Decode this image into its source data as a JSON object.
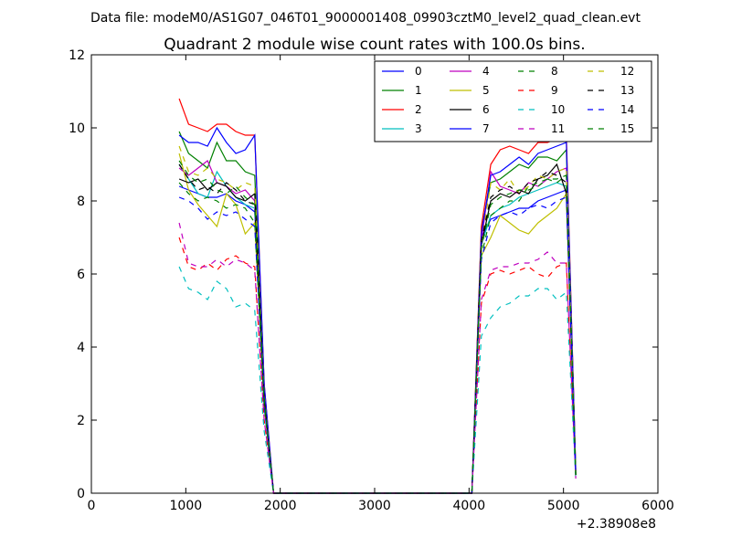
{
  "chart_data": {
    "type": "line",
    "suptitle": "Data file: modeM0/AS1G07_046T01_9000001408_09903cztM0_level2_quad_clean.evt",
    "title": "Quadrant 2 module wise count rates with 100.0s bins.",
    "xlabel": "",
    "ylabel": "",
    "x_offset_label": "+2.38908e8",
    "xlim": [
      0,
      6000
    ],
    "ylim": [
      0,
      12
    ],
    "xticks": [
      "0",
      "1000",
      "2000",
      "3000",
      "4000",
      "5000",
      "6000"
    ],
    "yticks": [
      "0",
      "2",
      "4",
      "6",
      "8",
      "10",
      "12"
    ],
    "grid": false,
    "legend": {
      "position": "top-right",
      "columns": 4
    },
    "x": [
      930,
      1030,
      1130,
      1230,
      1330,
      1430,
      1530,
      1630,
      1730,
      1830,
      1930,
      2030,
      2130,
      2230,
      2330,
      2430,
      2530,
      2630,
      2730,
      2830,
      2930,
      3030,
      3130,
      3230,
      3330,
      3430,
      3530,
      3630,
      3730,
      3830,
      3930,
      4030,
      4130,
      4230,
      4330,
      4430,
      4530,
      4630,
      4730,
      4830,
      4930,
      5030,
      5130
    ],
    "series": [
      {
        "name": "0",
        "color": "#0000ff",
        "dash": "solid",
        "values": [
          8.4,
          8.3,
          8.2,
          8.1,
          8.1,
          8.2,
          8.0,
          7.9,
          7.7,
          2.5,
          0,
          0,
          0,
          0,
          0,
          0,
          0,
          0,
          0,
          0,
          0,
          0,
          0,
          0,
          0,
          0,
          0,
          0,
          0,
          0,
          0,
          0,
          7.0,
          7.5,
          7.6,
          7.7,
          7.8,
          7.8,
          8.0,
          8.1,
          8.2,
          8.3,
          0.5
        ]
      },
      {
        "name": "1",
        "color": "#008000",
        "dash": "solid",
        "values": [
          9.9,
          9.3,
          9.1,
          8.9,
          9.6,
          9.1,
          9.1,
          8.8,
          8.7,
          2.8,
          0,
          0,
          0,
          0,
          0,
          0,
          0,
          0,
          0,
          0,
          0,
          0,
          0,
          0,
          0,
          0,
          0,
          0,
          0,
          0,
          0,
          0,
          7.2,
          8.5,
          8.6,
          8.8,
          9.0,
          8.9,
          9.2,
          9.2,
          9.1,
          9.4,
          0.6
        ]
      },
      {
        "name": "2",
        "color": "#ff0000",
        "dash": "solid",
        "values": [
          10.8,
          10.1,
          10.0,
          9.9,
          10.1,
          10.1,
          9.9,
          9.8,
          9.8,
          3.0,
          0,
          0,
          0,
          0,
          0,
          0,
          0,
          0,
          0,
          0,
          0,
          0,
          0,
          0,
          0,
          0,
          0,
          0,
          0,
          0,
          0,
          0,
          7.3,
          9.0,
          9.4,
          9.5,
          9.4,
          9.3,
          9.6,
          9.6,
          9.7,
          9.8,
          0.6
        ]
      },
      {
        "name": "3",
        "color": "#00bfbf",
        "dash": "solid",
        "values": [
          9.0,
          8.6,
          8.2,
          8.1,
          8.8,
          8.4,
          8.1,
          7.9,
          7.8,
          2.6,
          0,
          0,
          0,
          0,
          0,
          0,
          0,
          0,
          0,
          0,
          0,
          0,
          0,
          0,
          0,
          0,
          0,
          0,
          0,
          0,
          0,
          0,
          6.8,
          7.6,
          7.8,
          7.9,
          8.1,
          8.2,
          8.3,
          8.4,
          8.5,
          8.4,
          0.5
        ]
      },
      {
        "name": "4",
        "color": "#bf00bf",
        "dash": "solid",
        "values": [
          8.9,
          8.7,
          8.9,
          9.1,
          8.5,
          8.4,
          8.2,
          8.3,
          8.0,
          2.6,
          0,
          0,
          0,
          0,
          0,
          0,
          0,
          0,
          0,
          0,
          0,
          0,
          0,
          0,
          0,
          0,
          0,
          0,
          0,
          0,
          0,
          0,
          6.9,
          8.8,
          8.4,
          8.3,
          8.2,
          8.5,
          8.4,
          8.6,
          8.8,
          8.9,
          0.5
        ]
      },
      {
        "name": "5",
        "color": "#bfbf00",
        "dash": "solid",
        "values": [
          9.3,
          8.3,
          7.9,
          7.6,
          7.3,
          8.2,
          7.9,
          7.1,
          7.4,
          2.4,
          0,
          0,
          0,
          0,
          0,
          0,
          0,
          0,
          0,
          0,
          0,
          0,
          0,
          0,
          0,
          0,
          0,
          0,
          0,
          0,
          0,
          0,
          6.5,
          7.0,
          7.6,
          7.4,
          7.2,
          7.1,
          7.4,
          7.6,
          7.8,
          8.2,
          0.5
        ]
      },
      {
        "name": "6",
        "color": "#000000",
        "dash": "solid",
        "values": [
          8.6,
          8.5,
          8.6,
          8.3,
          8.5,
          8.4,
          8.1,
          8.0,
          8.2,
          2.6,
          0,
          0,
          0,
          0,
          0,
          0,
          0,
          0,
          0,
          0,
          0,
          0,
          0,
          0,
          0,
          0,
          0,
          0,
          0,
          0,
          0,
          0,
          6.8,
          8.0,
          8.2,
          8.1,
          8.3,
          8.2,
          8.6,
          8.7,
          9.0,
          8.2,
          0.5
        ]
      },
      {
        "name": "7",
        "color": "#0000ff",
        "dash": "solid",
        "values": [
          9.8,
          9.6,
          9.6,
          9.5,
          10.0,
          9.6,
          9.3,
          9.4,
          9.8,
          3.0,
          0,
          0,
          0,
          0,
          0,
          0,
          0,
          0,
          0,
          0,
          0,
          0,
          0,
          0,
          0,
          0,
          0,
          0,
          0,
          0,
          0,
          0,
          7.1,
          8.7,
          8.8,
          9.0,
          9.2,
          9.0,
          9.3,
          9.4,
          9.5,
          9.6,
          0.6
        ]
      },
      {
        "name": "8",
        "color": "#008000",
        "dash": "dashed",
        "values": [
          8.5,
          8.2,
          8.0,
          8.1,
          8.0,
          7.8,
          7.9,
          7.8,
          7.4,
          2.4,
          0,
          0,
          0,
          0,
          0,
          0,
          0,
          0,
          0,
          0,
          0,
          0,
          0,
          0,
          0,
          0,
          0,
          0,
          0,
          0,
          0,
          0,
          6.5,
          7.6,
          7.8,
          8.0,
          8.0,
          8.4,
          8.5,
          8.6,
          8.6,
          8.7,
          0.5
        ]
      },
      {
        "name": "9",
        "color": "#ff0000",
        "dash": "dashed",
        "values": [
          7.0,
          6.2,
          6.1,
          6.3,
          6.1,
          6.4,
          6.5,
          6.3,
          6.2,
          2.0,
          0,
          0,
          0,
          0,
          0,
          0,
          0,
          0,
          0,
          0,
          0,
          0,
          0,
          0,
          0,
          0,
          0,
          0,
          0,
          0,
          0,
          0,
          5.2,
          6.0,
          6.1,
          6.0,
          6.1,
          6.2,
          6.0,
          5.9,
          6.2,
          6.3,
          0.4
        ]
      },
      {
        "name": "10",
        "color": "#00bfbf",
        "dash": "dashed",
        "values": [
          6.2,
          5.6,
          5.5,
          5.3,
          5.8,
          5.6,
          5.1,
          5.2,
          5.0,
          1.7,
          0,
          0,
          0,
          0,
          0,
          0,
          0,
          0,
          0,
          0,
          0,
          0,
          0,
          0,
          0,
          0,
          0,
          0,
          0,
          0,
          0,
          0,
          4.3,
          4.8,
          5.1,
          5.2,
          5.4,
          5.4,
          5.6,
          5.6,
          5.3,
          5.5,
          0.4
        ]
      },
      {
        "name": "11",
        "color": "#bf00bf",
        "dash": "dashed",
        "values": [
          7.4,
          6.3,
          6.2,
          6.2,
          6.4,
          6.2,
          6.4,
          6.3,
          6.1,
          2.0,
          0,
          0,
          0,
          0,
          0,
          0,
          0,
          0,
          0,
          0,
          0,
          0,
          0,
          0,
          0,
          0,
          0,
          0,
          0,
          0,
          0,
          0,
          5.3,
          6.1,
          6.2,
          6.2,
          6.3,
          6.3,
          6.4,
          6.6,
          6.3,
          6.3,
          0.4
        ]
      },
      {
        "name": "12",
        "color": "#bfbf00",
        "dash": "dashed",
        "values": [
          9.5,
          8.8,
          8.7,
          8.9,
          8.6,
          8.5,
          8.3,
          8.5,
          8.4,
          2.7,
          0,
          0,
          0,
          0,
          0,
          0,
          0,
          0,
          0,
          0,
          0,
          0,
          0,
          0,
          0,
          0,
          0,
          0,
          0,
          0,
          0,
          0,
          6.8,
          8.5,
          8.3,
          8.6,
          8.2,
          8.4,
          8.7,
          8.6,
          8.8,
          8.9,
          0.5
        ]
      },
      {
        "name": "13",
        "color": "#000000",
        "dash": "dashed",
        "values": [
          9.0,
          8.6,
          8.3,
          8.4,
          8.2,
          8.5,
          8.3,
          8.0,
          7.9,
          2.6,
          0,
          0,
          0,
          0,
          0,
          0,
          0,
          0,
          0,
          0,
          0,
          0,
          0,
          0,
          0,
          0,
          0,
          0,
          0,
          0,
          0,
          0,
          6.9,
          8.1,
          8.3,
          8.4,
          8.2,
          8.5,
          8.6,
          8.8,
          8.7,
          8.5,
          0.5
        ]
      },
      {
        "name": "14",
        "color": "#0000ff",
        "dash": "dashed",
        "values": [
          8.1,
          8.0,
          7.8,
          7.5,
          7.7,
          7.6,
          7.7,
          7.5,
          7.3,
          2.4,
          0,
          0,
          0,
          0,
          0,
          0,
          0,
          0,
          0,
          0,
          0,
          0,
          0,
          0,
          0,
          0,
          0,
          0,
          0,
          0,
          0,
          0,
          6.4,
          7.4,
          7.6,
          7.7,
          7.6,
          7.8,
          7.9,
          7.8,
          8.0,
          8.1,
          0.5
        ]
      },
      {
        "name": "15",
        "color": "#008000",
        "dash": "dashed",
        "values": [
          9.1,
          8.7,
          8.5,
          8.6,
          8.3,
          8.2,
          8.4,
          8.1,
          7.9,
          2.6,
          0,
          0,
          0,
          0,
          0,
          0,
          0,
          0,
          0,
          0,
          0,
          0,
          0,
          0,
          0,
          0,
          0,
          0,
          0,
          0,
          0,
          0,
          6.7,
          7.9,
          8.1,
          8.2,
          8.3,
          8.3,
          8.4,
          8.6,
          8.5,
          8.7,
          0.5
        ]
      }
    ]
  }
}
